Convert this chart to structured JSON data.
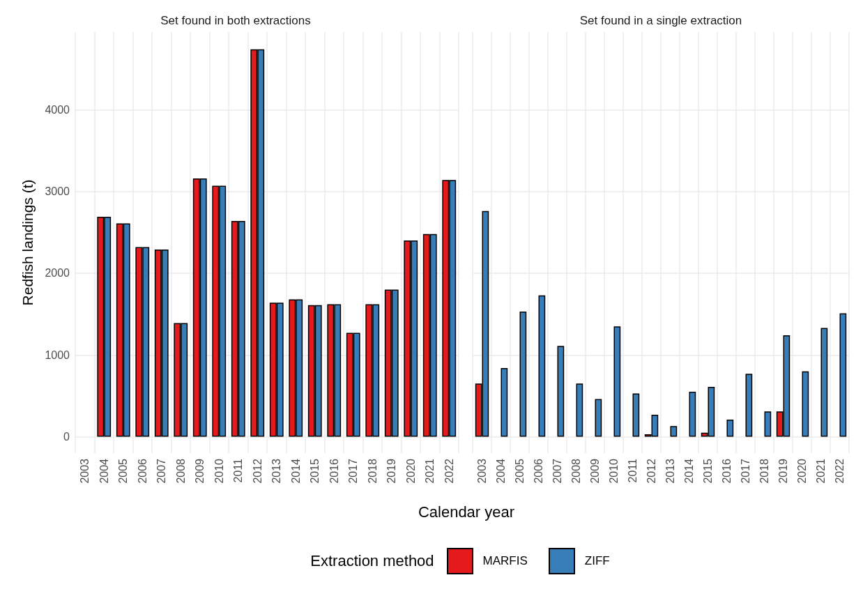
{
  "chart_data": [
    {
      "type": "bar",
      "title": "Set found in both extractions",
      "ylabel": "Redfish landings (t)",
      "categories": [
        "2003",
        "2004",
        "2005",
        "2006",
        "2007",
        "2008",
        "2009",
        "2010",
        "2011",
        "2012",
        "2013",
        "2014",
        "2015",
        "2016",
        "2017",
        "2018",
        "2019",
        "2020",
        "2021",
        "2022"
      ],
      "series": [
        {
          "name": "MARFIS",
          "color": "#e41a1c",
          "values": [
            null,
            2690,
            2610,
            2320,
            2290,
            1390,
            3160,
            3070,
            2640,
            4740,
            1640,
            1680,
            1610,
            1620,
            1270,
            1620,
            1800,
            2400,
            2480,
            3140
          ]
        },
        {
          "name": "ZIFF",
          "color": "#377eb8",
          "values": [
            null,
            2690,
            2610,
            2320,
            2290,
            1390,
            3160,
            3070,
            2640,
            4740,
            1640,
            1680,
            1610,
            1620,
            1270,
            1620,
            1800,
            2400,
            2480,
            3140
          ]
        }
      ],
      "ylim": [
        -200,
        4950
      ],
      "yticks": [
        0,
        1000,
        2000,
        3000,
        4000
      ],
      "grid": true,
      "legend": "bottom",
      "legend_title": "Extraction method"
    },
    {
      "type": "bar",
      "title": "Set found in a single extraction",
      "xlabel": "Calendar year",
      "categories": [
        "2003",
        "2004",
        "2005",
        "2006",
        "2007",
        "2008",
        "2009",
        "2010",
        "2011",
        "2012",
        "2013",
        "2014",
        "2015",
        "2016",
        "2017",
        "2018",
        "2019",
        "2020",
        "2021",
        "2022"
      ],
      "series": [
        {
          "color": "#e41a1c",
          "values": [
            650,
            null,
            null,
            null,
            null,
            null,
            null,
            null,
            null,
            30,
            null,
            null,
            50,
            null,
            null,
            null,
            310,
            null,
            null,
            null
          ]
        },
        {
          "color": "#377eb8",
          "values": [
            2760,
            840,
            1530,
            1730,
            1110,
            650,
            460,
            1350,
            530,
            270,
            130,
            550,
            610,
            210,
            770,
            310,
            1240,
            800,
            1330,
            1510
          ]
        }
      ],
      "ylim": [
        -200,
        4950
      ],
      "yticks": [
        0,
        1000,
        2000,
        3000,
        4000
      ],
      "grid": true,
      "tick_labels": "x"
    }
  ]
}
